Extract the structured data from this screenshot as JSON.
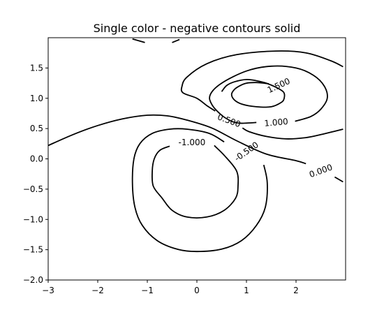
{
  "chart_data": {
    "type": "contour",
    "title": "Single color - negative contours solid",
    "xlabel": "",
    "ylabel": "",
    "xlim": [
      -3,
      3
    ],
    "ylim": [
      -2,
      2
    ],
    "grid": false,
    "line_color": "#000000",
    "x_ticks": [
      -3,
      -2,
      -1,
      0,
      1,
      2
    ],
    "y_ticks": [
      -2.0,
      -1.5,
      -1.0,
      -0.5,
      0.0,
      0.5,
      1.0,
      1.5
    ],
    "x_tick_labels": [
      "−3",
      "−2",
      "−1",
      "0",
      "1",
      "2"
    ],
    "y_tick_labels": [
      "−2.0",
      "−1.5",
      "−1.0",
      "−0.5",
      "0.0",
      "0.5",
      "1.0",
      "1.5"
    ],
    "levels": [
      {
        "value": 1.5,
        "label": "1.500",
        "label_at": [
          1.65,
          1.21
        ],
        "label_angle": -25,
        "paths": [
          [
            [
              0.5,
              1.11
            ],
            [
              0.6,
              1.21
            ],
            [
              0.75,
              1.27
            ],
            [
              1.0,
              1.31
            ],
            [
              1.2,
              1.29
            ],
            [
              1.4,
              1.25
            ],
            [
              1.6,
              1.18
            ],
            [
              1.75,
              1.1
            ],
            [
              1.76,
              1.0
            ],
            [
              1.7,
              0.93
            ],
            [
              1.5,
              0.86
            ],
            [
              1.2,
              0.86
            ],
            [
              0.92,
              0.9
            ],
            [
              0.76,
              0.97
            ],
            [
              0.7,
              1.06
            ],
            [
              0.75,
              1.14
            ],
            [
              0.85,
              1.2
            ],
            [
              1.0,
              1.25
            ],
            [
              1.2,
              1.26
            ],
            [
              1.45,
              1.24
            ]
          ]
        ]
      },
      {
        "value": 1.0,
        "label": "1.000",
        "label_at": [
          1.6,
          0.6
        ],
        "label_angle": -5,
        "paths": [
          [
            [
              1.98,
              0.62
            ],
            [
              2.3,
              0.7
            ],
            [
              2.5,
              0.82
            ],
            [
              2.63,
              1.0
            ],
            [
              2.57,
              1.2
            ],
            [
              2.35,
              1.38
            ],
            [
              2.0,
              1.5
            ],
            [
              1.5,
              1.53
            ],
            [
              1.0,
              1.45
            ],
            [
              0.5,
              1.25
            ],
            [
              0.27,
              1.06
            ],
            [
              0.3,
              0.9
            ],
            [
              0.5,
              0.72
            ],
            [
              0.7,
              0.62
            ],
            [
              0.85,
              0.59
            ],
            [
              1.0,
              0.59
            ],
            [
              1.2,
              0.6
            ]
          ]
        ]
      },
      {
        "value": 0.5,
        "label": "0.500",
        "label_at": [
          0.65,
          0.63
        ],
        "label_angle": 20,
        "paths": [
          [
            [
              0.37,
              0.79
            ],
            [
              0.2,
              0.88
            ],
            [
              0.0,
              1.0
            ],
            [
              -0.28,
              1.09
            ],
            [
              -0.3,
              1.2
            ],
            [
              -0.2,
              1.35
            ],
            [
              0.2,
              1.57
            ],
            [
              0.8,
              1.72
            ],
            [
              1.6,
              1.78
            ],
            [
              2.2,
              1.75
            ],
            [
              2.7,
              1.62
            ],
            [
              2.95,
              1.52
            ]
          ],
          [
            [
              0.92,
              0.51
            ],
            [
              1.05,
              0.45
            ],
            [
              1.4,
              0.37
            ],
            [
              1.8,
              0.33
            ],
            [
              2.2,
              0.35
            ],
            [
              2.5,
              0.4
            ],
            [
              2.8,
              0.46
            ],
            [
              2.95,
              0.49
            ]
          ]
        ]
      },
      {
        "value": 0.0,
        "label": "0.000",
        "label_at": [
          2.5,
          -0.2
        ],
        "label_angle": -20,
        "paths": [
          [
            [
              -3.0,
              0.22
            ],
            [
              -2.5,
              0.4
            ],
            [
              -2.0,
              0.55
            ],
            [
              -1.5,
              0.66
            ],
            [
              -1.0,
              0.72
            ],
            [
              -0.6,
              0.71
            ],
            [
              -0.2,
              0.64
            ],
            [
              0.3,
              0.51
            ],
            [
              0.8,
              0.3
            ],
            [
              1.4,
              0.08
            ],
            [
              2.0,
              -0.03
            ],
            [
              2.2,
              -0.08
            ]
          ],
          [
            [
              2.78,
              -0.3
            ],
            [
              2.95,
              -0.38
            ]
          ],
          [
            [
              -1.3,
              1.98
            ],
            [
              -1.05,
              1.92
            ]
          ],
          [
            [
              -0.5,
              1.92
            ],
            [
              -0.35,
              1.97
            ]
          ]
        ]
      },
      {
        "value": -0.5,
        "label": "-0.500",
        "label_at": [
          1.0,
          0.12
        ],
        "label_angle": -35,
        "paths": [
          [
            [
              1.35,
              -0.1
            ],
            [
              1.42,
              -0.4
            ],
            [
              1.38,
              -0.8
            ],
            [
              1.2,
              -1.1
            ],
            [
              0.9,
              -1.35
            ],
            [
              0.5,
              -1.49
            ],
            [
              0.0,
              -1.53
            ],
            [
              -0.4,
              -1.49
            ],
            [
              -0.8,
              -1.35
            ],
            [
              -1.1,
              -1.1
            ],
            [
              -1.25,
              -0.8
            ],
            [
              -1.3,
              -0.4
            ],
            [
              -1.27,
              0.0
            ],
            [
              -1.15,
              0.25
            ],
            [
              -0.9,
              0.42
            ],
            [
              -0.55,
              0.49
            ],
            [
              -0.2,
              0.49
            ],
            [
              0.25,
              0.42
            ],
            [
              0.55,
              0.28
            ]
          ]
        ]
      },
      {
        "value": -1.0,
        "label": "-1.000",
        "label_at": [
          -0.1,
          0.27
        ],
        "label_angle": 0,
        "paths": [
          [
            [
              0.35,
              0.22
            ],
            [
              0.56,
              0.05
            ],
            [
              0.8,
              -0.2
            ],
            [
              0.83,
              -0.45
            ],
            [
              0.78,
              -0.65
            ],
            [
              0.55,
              -0.85
            ],
            [
              0.2,
              -0.96
            ],
            [
              -0.2,
              -0.96
            ],
            [
              -0.5,
              -0.85
            ],
            [
              -0.7,
              -0.65
            ],
            [
              -0.88,
              -0.45
            ],
            [
              -0.9,
              -0.2
            ],
            [
              -0.86,
              0.0
            ],
            [
              -0.75,
              0.14
            ],
            [
              -0.55,
              0.21
            ]
          ]
        ]
      }
    ]
  }
}
